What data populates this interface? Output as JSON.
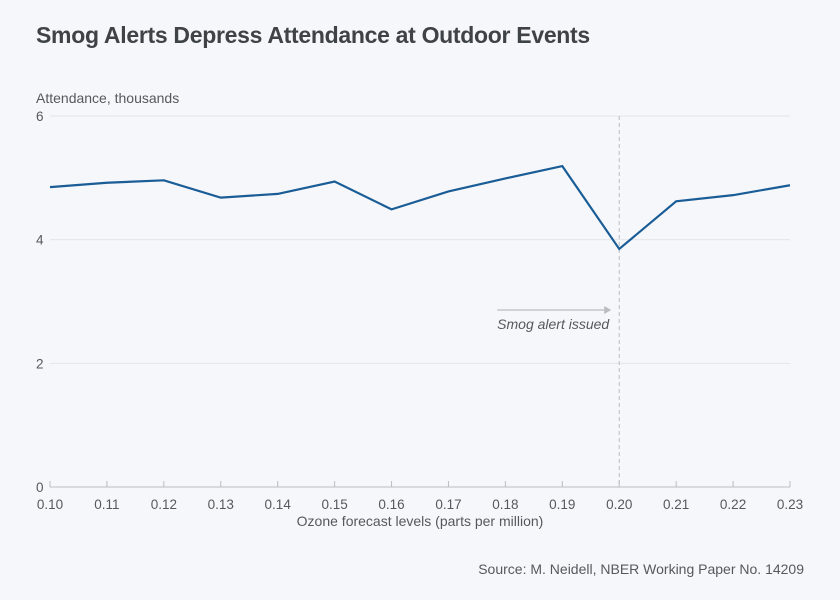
{
  "chart_data": {
    "type": "line",
    "title": "Smog Alerts Depress Attendance at Outdoor Events",
    "xlabel": "Ozone forecast levels (parts per million)",
    "ylabel": "Attendance, thousands",
    "x": [
      0.1,
      0.11,
      0.12,
      0.13,
      0.14,
      0.15,
      0.16,
      0.17,
      0.18,
      0.19,
      0.2,
      0.21,
      0.22,
      0.23
    ],
    "x_tick_labels": [
      "0.10",
      "0.11",
      "0.12",
      "0.13",
      "0.14",
      "0.15",
      "0.16",
      "0.17",
      "0.18",
      "0.19",
      "0.20",
      "0.21",
      "0.22",
      "0.23"
    ],
    "series": [
      {
        "name": "Attendance",
        "color": "#1a5c96",
        "values": [
          4.85,
          4.92,
          4.96,
          4.68,
          4.74,
          4.94,
          4.49,
          4.78,
          4.99,
          5.19,
          3.85,
          4.62,
          4.72,
          4.88
        ]
      }
    ],
    "xlim": [
      0.1,
      0.23
    ],
    "ylim": [
      0,
      6
    ],
    "y_ticks": [
      0,
      2,
      4,
      6
    ],
    "y_tick_labels": [
      "0",
      "2",
      "4",
      "6"
    ],
    "grid": true,
    "annotations": [
      {
        "text": "Smog alert issued",
        "x": 0.2,
        "style": "dashed-vertical-line-with-arrow"
      }
    ],
    "source": "Source: M. Neidell, NBER Working Paper No. 14209"
  }
}
